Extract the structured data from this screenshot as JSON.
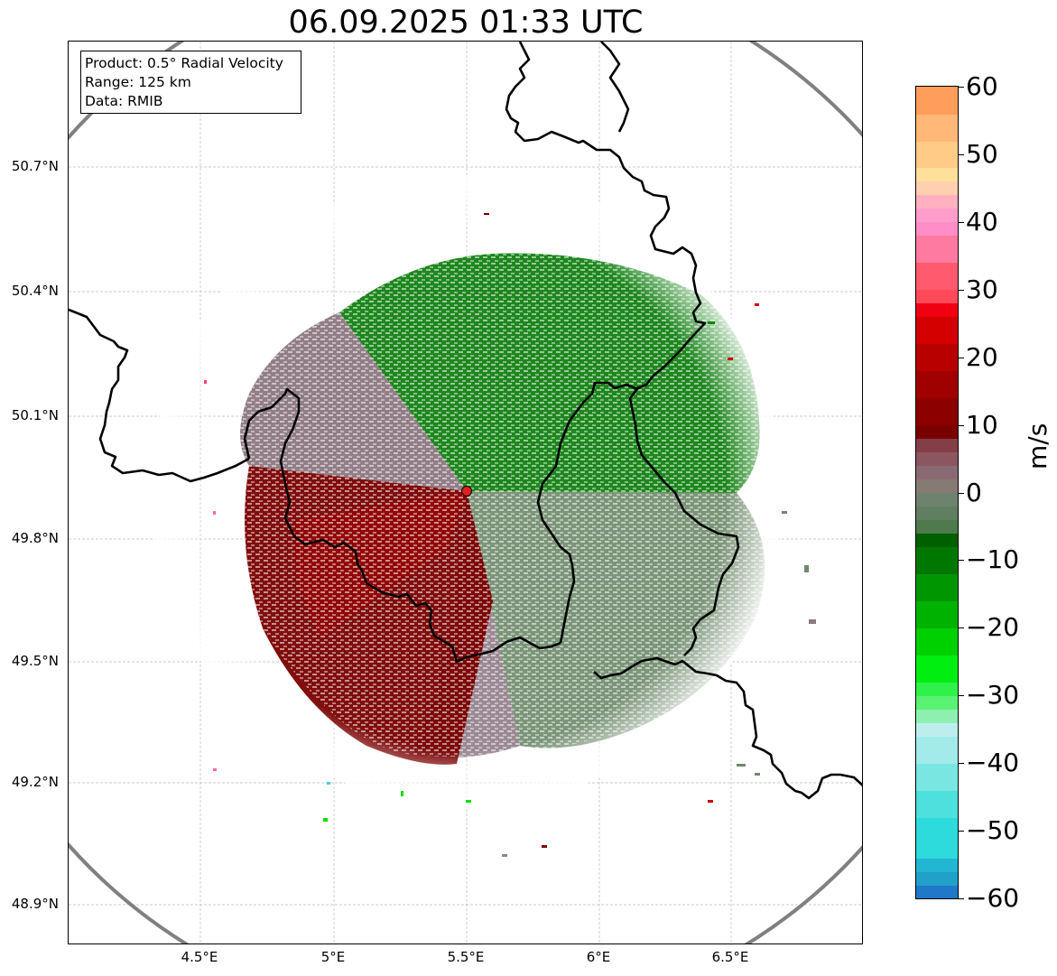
{
  "title": "06.09.2025 01:33 UTC",
  "info_box": {
    "product": "Product: 0.5° Radial Velocity",
    "range": "Range: 125 km",
    "data": "Data: RMIB"
  },
  "map": {
    "lat_labels": [
      "50.7°N",
      "50.4°N",
      "50.1°N",
      "49.8°N",
      "49.5°N",
      "49.2°N",
      "48.9°N"
    ],
    "lon_labels": [
      "4.5°E",
      "5°E",
      "5.5°E",
      "6°E",
      "6.5°E"
    ],
    "radar_site": {
      "lon": 5.5,
      "lat": 49.91
    },
    "range_ring_km": 125,
    "colors": {
      "border": "#000000",
      "range_ring": "#808080",
      "grid": "#bbbbbb",
      "radar_marker": "#e02020"
    }
  },
  "colorbar": {
    "unit": "m/s",
    "min": -60,
    "max": 60,
    "tick_labels": [
      "60",
      "50",
      "40",
      "30",
      "20",
      "10",
      "0",
      "−10",
      "−20",
      "−30",
      "−40",
      "−50",
      "−60"
    ],
    "tick_values": [
      60,
      50,
      40,
      30,
      20,
      10,
      0,
      -10,
      -20,
      -30,
      -40,
      -50,
      -60
    ],
    "color_stops": [
      {
        "from": -60,
        "to": -58,
        "color": "#1f78c8"
      },
      {
        "from": -58,
        "to": -56,
        "color": "#21a0c8"
      },
      {
        "from": -56,
        "to": -54,
        "color": "#22b6d2"
      },
      {
        "from": -54,
        "to": -48,
        "color": "#2ddadc"
      },
      {
        "from": -48,
        "to": -44,
        "color": "#4ee0dc"
      },
      {
        "from": -44,
        "to": -40,
        "color": "#7ae6e2"
      },
      {
        "from": -40,
        "to": -36,
        "color": "#a3eaea"
      },
      {
        "from": -36,
        "to": -34,
        "color": "#bdeeee"
      },
      {
        "from": -34,
        "to": -32,
        "color": "#8ef0b0"
      },
      {
        "from": -32,
        "to": -30,
        "color": "#5af272"
      },
      {
        "from": -30,
        "to": -28,
        "color": "#2ef24a"
      },
      {
        "from": -28,
        "to": -24,
        "color": "#00ee10"
      },
      {
        "from": -24,
        "to": -20,
        "color": "#00d000"
      },
      {
        "from": -20,
        "to": -16,
        "color": "#00b200"
      },
      {
        "from": -16,
        "to": -12,
        "color": "#009600"
      },
      {
        "from": -12,
        "to": -8,
        "color": "#007800"
      },
      {
        "from": -8,
        "to": -6,
        "color": "#006000"
      },
      {
        "from": -6,
        "to": -4,
        "color": "#4e7a4e"
      },
      {
        "from": -4,
        "to": -2,
        "color": "#5f7f60"
      },
      {
        "from": -2,
        "to": 0,
        "color": "#6f826d"
      },
      {
        "from": 0,
        "to": 2,
        "color": "#867a74"
      },
      {
        "from": 2,
        "to": 4,
        "color": "#8a6a72"
      },
      {
        "from": 4,
        "to": 6,
        "color": "#8b5660"
      },
      {
        "from": 6,
        "to": 8,
        "color": "#843e48"
      },
      {
        "from": 8,
        "to": 10,
        "color": "#7a0000"
      },
      {
        "from": 10,
        "to": 14,
        "color": "#8c0000"
      },
      {
        "from": 14,
        "to": 18,
        "color": "#a00000"
      },
      {
        "from": 18,
        "to": 22,
        "color": "#b80000"
      },
      {
        "from": 22,
        "to": 26,
        "color": "#d40000"
      },
      {
        "from": 26,
        "to": 28,
        "color": "#f00010"
      },
      {
        "from": 28,
        "to": 30,
        "color": "#ff4a5a"
      },
      {
        "from": 30,
        "to": 34,
        "color": "#ff5a6e"
      },
      {
        "from": 34,
        "to": 38,
        "color": "#ff7aa0"
      },
      {
        "from": 38,
        "to": 40,
        "color": "#ff8ec8"
      },
      {
        "from": 40,
        "to": 42,
        "color": "#ff9ecc"
      },
      {
        "from": 42,
        "to": 44,
        "color": "#ffb0c0"
      },
      {
        "from": 44,
        "to": 46,
        "color": "#ffd0b0"
      },
      {
        "from": 46,
        "to": 48,
        "color": "#ffe09a"
      },
      {
        "from": 48,
        "to": 52,
        "color": "#ffcc88"
      },
      {
        "from": 52,
        "to": 56,
        "color": "#ffb878"
      },
      {
        "from": 56,
        "to": 60,
        "color": "#ff9e5a"
      }
    ]
  }
}
